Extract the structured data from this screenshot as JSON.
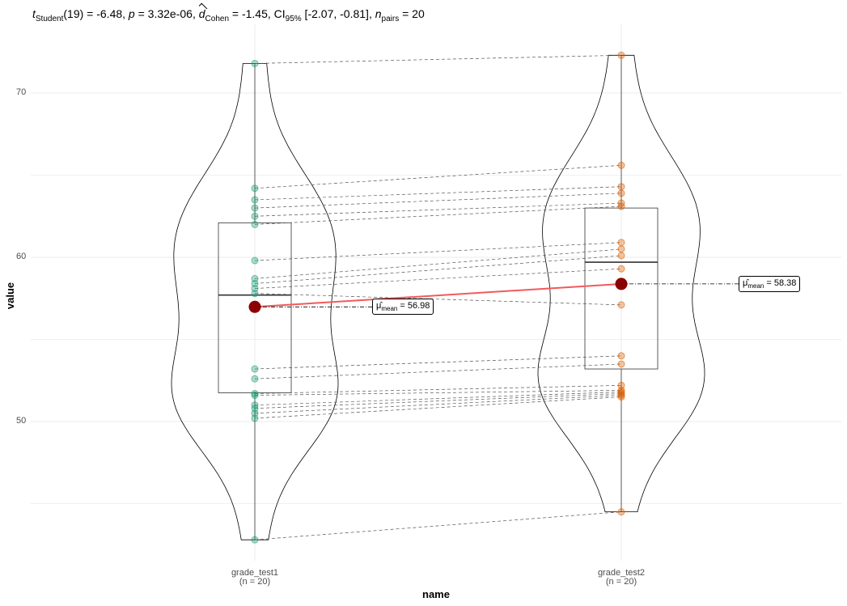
{
  "subtitle": {
    "t_symbol": "t",
    "t_sub": "Student",
    "t_rest": "(19) = -6.48, ",
    "p_symbol": "p",
    "p_rest": " = 3.32e-06, ",
    "d_symbol": "d",
    "d_sub": "Cohen",
    "d_rest": " = -1.45, CI",
    "ci_sub": "95%",
    "ci_rest": " [-2.07, -0.81], ",
    "n_symbol": "n",
    "n_sub": "pairs",
    "n_rest": " = 20"
  },
  "chart_data": {
    "type": "violin-box-paired",
    "xlabel": "name",
    "ylabel": "value",
    "ylim": [
      41.5,
      73.0
    ],
    "yticks": [
      50,
      60,
      70
    ],
    "categories": [
      "grade_test1",
      "grade_test2"
    ],
    "category_counts": [
      "(n = 20)",
      "(n = 20)"
    ],
    "grid": true,
    "series": [
      {
        "name": "grade_test1",
        "values": [
          71.8,
          64.2,
          63.5,
          63.0,
          62.5,
          62.0,
          59.8,
          58.7,
          58.4,
          58.1,
          57.8,
          53.2,
          52.6,
          51.7,
          51.6,
          51.0,
          50.8,
          50.5,
          50.2,
          42.8
        ],
        "box": {
          "q1": 51.75,
          "median": 57.7,
          "q3": 62.1,
          "min": 42.8,
          "max": 71.8
        },
        "mean": 56.98,
        "mean_label": "56.98",
        "color": "#1b9e77"
      },
      {
        "name": "grade_test2",
        "values": [
          72.3,
          65.6,
          64.3,
          63.9,
          63.3,
          63.1,
          60.9,
          60.5,
          60.1,
          59.3,
          57.1,
          54.0,
          53.5,
          52.2,
          51.9,
          51.8,
          51.7,
          51.6,
          51.5,
          44.5
        ],
        "box": {
          "q1": 53.2,
          "median": 59.7,
          "q3": 63.0,
          "min": 44.5,
          "max": 72.3
        },
        "mean": 58.38,
        "mean_label": "58.38",
        "color": "#d95f02"
      }
    ],
    "mean_color": "#8b0000",
    "mean_line_color": "#f15a5a"
  }
}
